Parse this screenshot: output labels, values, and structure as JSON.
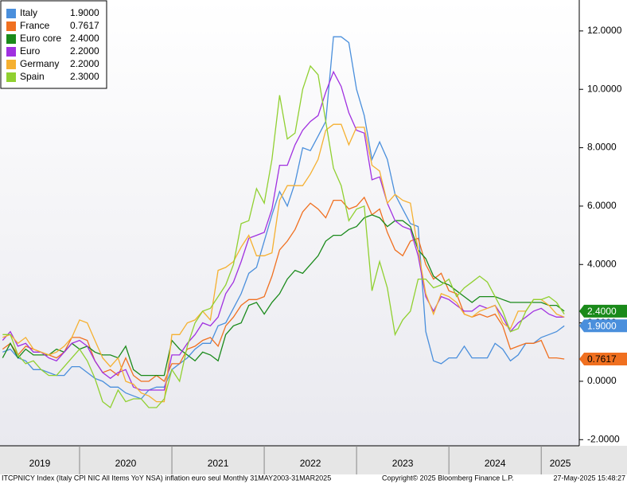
{
  "chart_data": {
    "type": "line",
    "categories": [
      "2019",
      null,
      null,
      null,
      null,
      null,
      null,
      null,
      null,
      null,
      "2020",
      null,
      null,
      null,
      null,
      null,
      null,
      null,
      null,
      null,
      null,
      null,
      "2021",
      null,
      null,
      null,
      null,
      null,
      null,
      null,
      null,
      null,
      null,
      null,
      "2022",
      null,
      null,
      null,
      null,
      null,
      null,
      null,
      null,
      null,
      null,
      null,
      "2023",
      null,
      null,
      null,
      null,
      null,
      null,
      null,
      null,
      null,
      null,
      null,
      "2024",
      null,
      null,
      null,
      null,
      null,
      null,
      null,
      null,
      null,
      null,
      null,
      "2025",
      null,
      null,
      null
    ],
    "series": [
      {
        "name": "Italy",
        "color": "#4a8fdc",
        "last": {
          "value": 1.9,
          "label": "1.9000"
        },
        "tag": true,
        "values": [
          1.0,
          1.1,
          0.8,
          0.7,
          0.4,
          0.4,
          0.3,
          0.2,
          0.2,
          0.5,
          0.5,
          0.3,
          0.1,
          0.0,
          -0.2,
          -0.2,
          -0.4,
          -0.5,
          -0.6,
          -0.3,
          -0.2,
          -0.2,
          0.4,
          0.6,
          0.8,
          1.1,
          1.3,
          1.3,
          1.9,
          2.0,
          2.5,
          3.0,
          3.7,
          3.9,
          4.8,
          5.7,
          6.5,
          6.0,
          6.8,
          8.0,
          7.9,
          8.4,
          8.9,
          11.8,
          11.8,
          11.6,
          10.0,
          9.1,
          7.6,
          8.2,
          7.6,
          6.4,
          5.9,
          5.4,
          5.3,
          1.7,
          0.7,
          0.6,
          0.8,
          0.8,
          1.2,
          0.8,
          0.8,
          0.8,
          1.3,
          1.1,
          0.7,
          0.9,
          1.3,
          1.3,
          1.5,
          1.6,
          1.7,
          1.9
        ]
      },
      {
        "name": "France",
        "color": "#f07020",
        "last": {
          "value": 0.7617,
          "label": "0.7617"
        },
        "tag": true,
        "values": [
          1.1,
          1.3,
          0.9,
          1.2,
          1.1,
          1.0,
          0.9,
          0.8,
          1.0,
          1.5,
          1.5,
          1.4,
          0.7,
          0.3,
          0.4,
          0.2,
          0.8,
          0.2,
          0.0,
          0.0,
          0.2,
          0.0,
          0.6,
          0.6,
          1.1,
          1.2,
          1.4,
          1.5,
          1.2,
          1.9,
          2.2,
          2.6,
          2.8,
          2.8,
          2.9,
          3.6,
          4.5,
          4.8,
          5.2,
          5.8,
          6.1,
          5.9,
          5.6,
          6.2,
          6.2,
          5.9,
          6.0,
          6.3,
          5.7,
          5.9,
          5.1,
          4.5,
          4.3,
          4.8,
          4.9,
          4.0,
          3.5,
          3.7,
          3.1,
          3.0,
          2.3,
          2.2,
          2.3,
          2.2,
          2.3,
          1.9,
          1.1,
          1.2,
          1.3,
          1.3,
          1.4,
          0.8,
          0.8,
          0.7617
        ]
      },
      {
        "name": "Euro core",
        "color": "#1a8a1a",
        "last": {
          "value": 2.4,
          "label": "2.4000"
        },
        "tag": true,
        "values": [
          0.8,
          1.3,
          0.8,
          1.1,
          0.9,
          0.9,
          0.9,
          1.1,
          1.0,
          1.3,
          1.1,
          1.2,
          1.0,
          0.9,
          0.9,
          0.8,
          1.2,
          0.4,
          0.2,
          0.2,
          0.2,
          0.2,
          1.4,
          1.1,
          0.9,
          0.7,
          1.0,
          0.9,
          0.7,
          1.6,
          1.9,
          2.0,
          2.6,
          2.7,
          2.3,
          2.7,
          3.0,
          3.5,
          3.8,
          3.7,
          4.0,
          4.3,
          4.8,
          5.0,
          5.0,
          5.2,
          5.3,
          5.6,
          5.7,
          5.6,
          5.3,
          5.5,
          5.5,
          5.3,
          4.5,
          4.2,
          3.6,
          3.4,
          3.3,
          3.1,
          2.9,
          2.7,
          2.9,
          2.9,
          2.9,
          2.8,
          2.7,
          2.7,
          2.7,
          2.7,
          2.7,
          2.6,
          2.6,
          2.4
        ]
      },
      {
        "name": "Euro",
        "color": "#a030e0",
        "last": {
          "value": 2.2,
          "label": "2.2000"
        },
        "tag": false,
        "values": [
          1.4,
          1.7,
          1.2,
          1.3,
          1.0,
          1.0,
          0.8,
          0.7,
          1.0,
          1.3,
          1.4,
          1.2,
          0.7,
          0.3,
          0.1,
          0.3,
          0.4,
          -0.2,
          -0.3,
          -0.3,
          -0.3,
          -0.3,
          0.9,
          0.9,
          1.3,
          1.6,
          2.0,
          1.9,
          2.2,
          3.0,
          3.4,
          4.1,
          4.9,
          5.0,
          5.1,
          5.9,
          7.4,
          7.4,
          8.1,
          8.6,
          8.9,
          9.1,
          9.9,
          10.6,
          10.1,
          9.2,
          8.6,
          8.5,
          6.9,
          7.0,
          6.1,
          5.5,
          5.3,
          5.2,
          4.3,
          2.9,
          2.4,
          2.9,
          2.8,
          2.6,
          2.4,
          2.4,
          2.6,
          2.5,
          2.6,
          2.2,
          1.7,
          2.0,
          2.2,
          2.4,
          2.5,
          2.3,
          2.2,
          2.2
        ]
      },
      {
        "name": "Germany",
        "color": "#f5b030",
        "last": {
          "value": 2.2,
          "label": "2.2000"
        },
        "tag": false,
        "values": [
          1.5,
          1.6,
          1.3,
          1.5,
          1.1,
          1.0,
          0.9,
          1.0,
          1.2,
          1.5,
          2.1,
          2.0,
          1.4,
          0.8,
          0.5,
          0.8,
          0.0,
          -0.1,
          -0.4,
          -0.5,
          -0.7,
          -0.7,
          1.6,
          1.6,
          2.0,
          2.1,
          2.4,
          2.1,
          3.8,
          3.9,
          4.1,
          4.6,
          5.0,
          4.3,
          4.3,
          4.4,
          6.2,
          6.7,
          6.7,
          6.7,
          7.1,
          7.6,
          8.6,
          8.8,
          8.8,
          8.1,
          8.7,
          8.7,
          7.4,
          7.2,
          6.1,
          6.4,
          6.2,
          6.1,
          4.5,
          3.0,
          2.3,
          3.0,
          2.9,
          2.7,
          2.3,
          2.2,
          2.4,
          2.5,
          2.6,
          2.0,
          1.8,
          2.4,
          2.4,
          2.8,
          2.8,
          2.6,
          2.3,
          2.2
        ]
      },
      {
        "name": "Spain",
        "color": "#90d030",
        "last": {
          "value": 2.3,
          "label": "2.3000"
        },
        "tag": false,
        "values": [
          1.6,
          1.6,
          0.9,
          0.6,
          0.7,
          0.4,
          0.2,
          0.2,
          0.5,
          0.8,
          1.1,
          0.7,
          0.1,
          -0.7,
          -0.9,
          -0.3,
          -0.7,
          -0.6,
          -0.6,
          -0.9,
          -0.9,
          -0.6,
          0.4,
          0.0,
          1.2,
          2.0,
          2.4,
          2.5,
          2.9,
          3.3,
          4.0,
          5.4,
          5.5,
          6.6,
          6.1,
          7.6,
          9.8,
          8.3,
          8.5,
          10.0,
          10.8,
          10.5,
          8.9,
          7.3,
          6.7,
          5.5,
          5.9,
          6.0,
          3.1,
          4.1,
          3.2,
          1.6,
          2.1,
          2.4,
          3.5,
          3.5,
          3.2,
          3.3,
          3.5,
          2.9,
          3.2,
          3.4,
          3.6,
          3.4,
          2.9,
          2.4,
          1.7,
          1.8,
          2.4,
          2.8,
          2.8,
          2.9,
          2.7,
          2.3
        ]
      }
    ],
    "ylim": [
      -2.21,
      13.06
    ],
    "yticks": [
      {
        "value": -2,
        "label": "-2.0000"
      },
      {
        "value": 0,
        "label": "0.0000"
      },
      {
        "value": 2,
        "label": "2.0000"
      },
      {
        "value": 4,
        "label": "4.0000"
      },
      {
        "value": 6,
        "label": "6.0000"
      },
      {
        "value": 8,
        "label": "8.0000"
      },
      {
        "value": 10,
        "label": "10.0000"
      },
      {
        "value": 12,
        "label": "12.0000"
      }
    ],
    "grid": false,
    "legend": "top-left",
    "footer": {
      "left": "ITCPNICY Index (Italy CPI NIC All Items YoY NSA) inflation euro seul  Monthly 31MAY2003-31MAR2025",
      "center": "Copyright© 2025 Bloomberg Finance L.P.",
      "right": "27-May-2025 15:48:27"
    }
  }
}
